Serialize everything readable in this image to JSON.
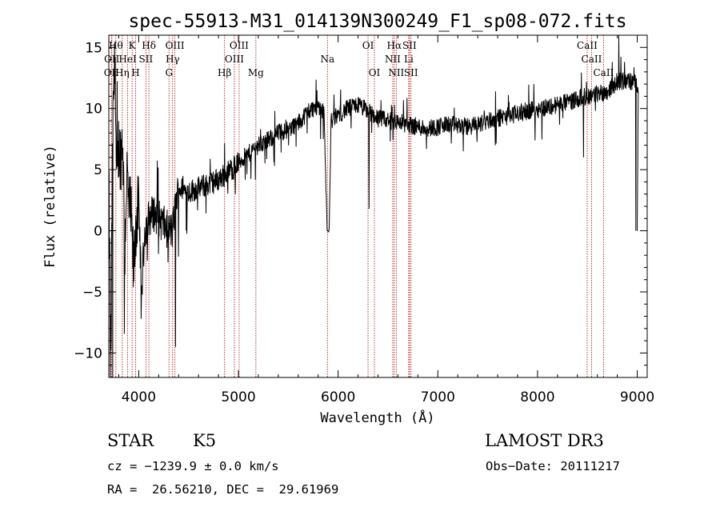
{
  "chart_data": {
    "type": "line",
    "title": "spec-55913-M31_014139N300249_F1_sp08-072.fits",
    "xlabel": "Wavelength (Å)",
    "ylabel": "Flux (relative)",
    "xlim": [
      3700,
      9100
    ],
    "ylim": [
      -12,
      16
    ],
    "xticks": [
      4000,
      5000,
      6000,
      7000,
      8000,
      9000
    ],
    "yticks": [
      -10,
      -5,
      0,
      5,
      10,
      15
    ],
    "grid": false,
    "legend": "none",
    "series_color": "#000000",
    "marker_color": "#b22222",
    "spectrum_anchors": [
      [
        3700,
        4.0
      ],
      [
        3720,
        -10.5
      ],
      [
        3740,
        8.0
      ],
      [
        3760,
        13.5
      ],
      [
        3780,
        3.0
      ],
      [
        3800,
        7.0
      ],
      [
        3820,
        6.0
      ],
      [
        3840,
        8.0
      ],
      [
        3860,
        -2.0
      ],
      [
        3880,
        5.0
      ],
      [
        3900,
        2.0
      ],
      [
        3920,
        1.5
      ],
      [
        3950,
        -3.5
      ],
      [
        3970,
        0.5
      ],
      [
        4000,
        2.0
      ],
      [
        4030,
        -5.0
      ],
      [
        4060,
        0.0
      ],
      [
        4100,
        1.0
      ],
      [
        4150,
        1.5
      ],
      [
        4200,
        1.0
      ],
      [
        4250,
        0.5
      ],
      [
        4300,
        0.0
      ],
      [
        4340,
        0.0
      ],
      [
        4360,
        1.5
      ],
      [
        4400,
        3.5
      ],
      [
        4500,
        3.2
      ],
      [
        4600,
        3.5
      ],
      [
        4700,
        3.8
      ],
      [
        4800,
        4.2
      ],
      [
        4900,
        4.8
      ],
      [
        5000,
        5.6
      ],
      [
        5100,
        6.3
      ],
      [
        5200,
        7.0
      ],
      [
        5300,
        7.4
      ],
      [
        5400,
        8.0
      ],
      [
        5500,
        8.3
      ],
      [
        5600,
        8.8
      ],
      [
        5700,
        9.8
      ],
      [
        5800,
        10.2
      ],
      [
        5860,
        9.8
      ],
      [
        5890,
        0.0
      ],
      [
        5910,
        0.0
      ],
      [
        5930,
        9.0
      ],
      [
        6000,
        9.5
      ],
      [
        6100,
        10.0
      ],
      [
        6200,
        10.3
      ],
      [
        6300,
        9.8
      ],
      [
        6400,
        9.2
      ],
      [
        6500,
        9.0
      ],
      [
        6600,
        8.9
      ],
      [
        6700,
        8.7
      ],
      [
        6800,
        8.5
      ],
      [
        6900,
        8.4
      ],
      [
        7000,
        8.5
      ],
      [
        7100,
        8.7
      ],
      [
        7200,
        8.6
      ],
      [
        7300,
        8.5
      ],
      [
        7400,
        8.7
      ],
      [
        7500,
        9.0
      ],
      [
        7600,
        9.2
      ],
      [
        7700,
        9.4
      ],
      [
        7800,
        9.6
      ],
      [
        7900,
        9.8
      ],
      [
        8000,
        10.0
      ],
      [
        8100,
        10.1
      ],
      [
        8200,
        10.3
      ],
      [
        8300,
        10.5
      ],
      [
        8400,
        10.8
      ],
      [
        8500,
        11.0
      ],
      [
        8600,
        11.2
      ],
      [
        8700,
        11.4
      ],
      [
        8800,
        12.2
      ],
      [
        8900,
        12.3
      ],
      [
        9000,
        12.0
      ]
    ],
    "spectral_lines": [
      {
        "label": "OII",
        "x": 3727,
        "row": 2
      },
      {
        "label": "Hθ",
        "x": 3771,
        "row": 0
      },
      {
        "label": "OII",
        "x": 3730,
        "row": 1
      },
      {
        "label": "Hη",
        "x": 3835,
        "row": 2
      },
      {
        "label": "HeI",
        "x": 3889,
        "row": 1
      },
      {
        "label": "K",
        "x": 3934,
        "row": 0
      },
      {
        "label": "H",
        "x": 3969,
        "row": 2
      },
      {
        "label": "SII",
        "x": 4072,
        "row": 1
      },
      {
        "label": "Hδ",
        "x": 4102,
        "row": 0
      },
      {
        "label": "G",
        "x": 4304,
        "row": 2
      },
      {
        "label": "Hγ",
        "x": 4340,
        "row": 1
      },
      {
        "label": "OIII",
        "x": 4363,
        "row": 0
      },
      {
        "label": "Hβ",
        "x": 4861,
        "row": 2
      },
      {
        "label": "OIII",
        "x": 4959,
        "row": 1
      },
      {
        "label": "OIII",
        "x": 5007,
        "row": 0
      },
      {
        "label": "Mg",
        "x": 5175,
        "row": 2
      },
      {
        "label": "Na",
        "x": 5893,
        "row": 1
      },
      {
        "label": "OI",
        "x": 6300,
        "row": 0
      },
      {
        "label": "OI",
        "x": 6364,
        "row": 2
      },
      {
        "label": "NII",
        "x": 6548,
        "row": 1
      },
      {
        "label": "Hα",
        "x": 6563,
        "row": 0
      },
      {
        "label": "NII",
        "x": 6583,
        "row": 2
      },
      {
        "label": "Li",
        "x": 6708,
        "row": 1
      },
      {
        "label": "SII",
        "x": 6716,
        "row": 0
      },
      {
        "label": "SII",
        "x": 6731,
        "row": 2
      },
      {
        "label": "CaII",
        "x": 8498,
        "row": 0
      },
      {
        "label": "CaII",
        "x": 8542,
        "row": 1
      },
      {
        "label": "CaII",
        "x": 8662,
        "row": 2
      }
    ]
  },
  "info": {
    "object_class": "STAR",
    "subclass": "K5",
    "survey": "LAMOST DR3",
    "redshift_text": "cz = −1239.9 ± 0.0 km/s",
    "obs_date_text": "Obs−Date: 20111217",
    "coords_text": "RA =  26.56210, DEC =  29.61969"
  }
}
